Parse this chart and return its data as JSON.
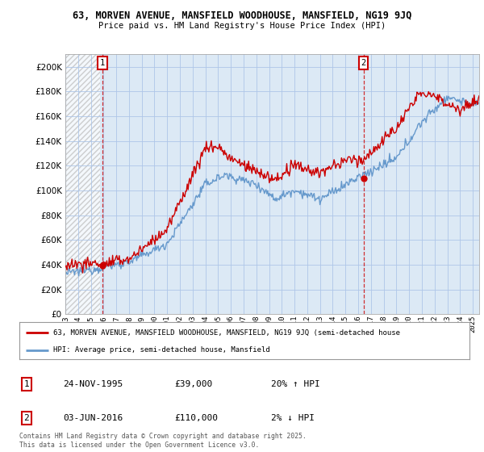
{
  "title1": "63, MORVEN AVENUE, MANSFIELD WOODHOUSE, MANSFIELD, NG19 9JQ",
  "title2": "Price paid vs. HM Land Registry's House Price Index (HPI)",
  "ytick_values": [
    0,
    20000,
    40000,
    60000,
    80000,
    100000,
    120000,
    140000,
    160000,
    180000,
    200000
  ],
  "xlim_start": 1993.0,
  "xlim_end": 2025.5,
  "ylim": [
    0,
    210000
  ],
  "purchase1_x": 1995.9,
  "purchase1_y": 39000,
  "purchase2_x": 2016.42,
  "purchase2_y": 110000,
  "legend_line1": "63, MORVEN AVENUE, MANSFIELD WOODHOUSE, MANSFIELD, NG19 9JQ (semi-detached house",
  "legend_line2": "HPI: Average price, semi-detached house, Mansfield",
  "annotation1_date": "24-NOV-1995",
  "annotation1_price": "£39,000",
  "annotation1_hpi": "20% ↑ HPI",
  "annotation2_date": "03-JUN-2016",
  "annotation2_price": "£110,000",
  "annotation2_hpi": "2% ↓ HPI",
  "footnote": "Contains HM Land Registry data © Crown copyright and database right 2025.\nThis data is licensed under the Open Government Licence v3.0.",
  "price_color": "#cc0000",
  "hpi_color": "#6699cc",
  "chart_bg": "#dce9f5",
  "hatch_bg": "#f0f0f0",
  "background_color": "#ffffff",
  "grid_color": "#aec6e8"
}
